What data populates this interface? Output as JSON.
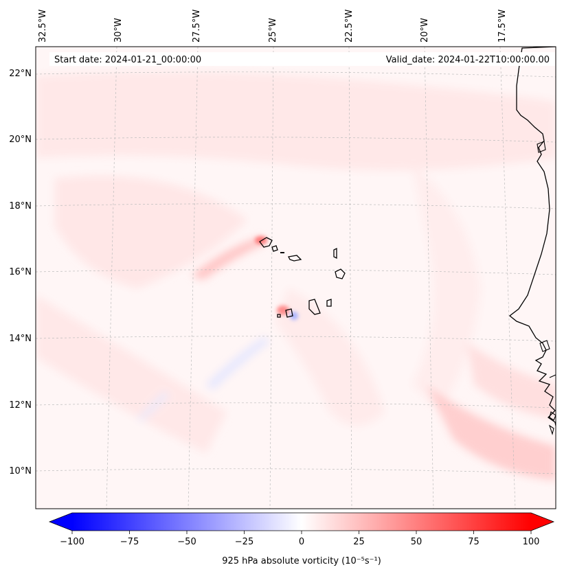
{
  "header": {
    "start_date": "Start date: 2024-01-21_00:00:00",
    "valid_date": "Valid_date: 2024-01-22T10:00:00.00"
  },
  "axes": {
    "lon_labels": [
      "32.5°W",
      "30°W",
      "27.5°W",
      "25°W",
      "22.5°W",
      "20°W",
      "17.5°W"
    ],
    "lat_labels": [
      "22°N",
      "20°N",
      "18°N",
      "16°N",
      "14°N",
      "12°N",
      "10°N"
    ]
  },
  "colorbar": {
    "label": "925 hPa absolute vorticity (10⁻⁵s⁻¹)",
    "vmin": -100,
    "vmax": 100,
    "ticks": [
      "−100",
      "−75",
      "−50",
      "−25",
      "0",
      "25",
      "50",
      "75",
      "100"
    ],
    "low_color": "#0000ff",
    "mid_color": "#ffffff",
    "high_color": "#ff0000"
  },
  "colors": {
    "background_field": "#fff6f6",
    "coastline": "#000000",
    "gridline": "#bbbbbb"
  }
}
